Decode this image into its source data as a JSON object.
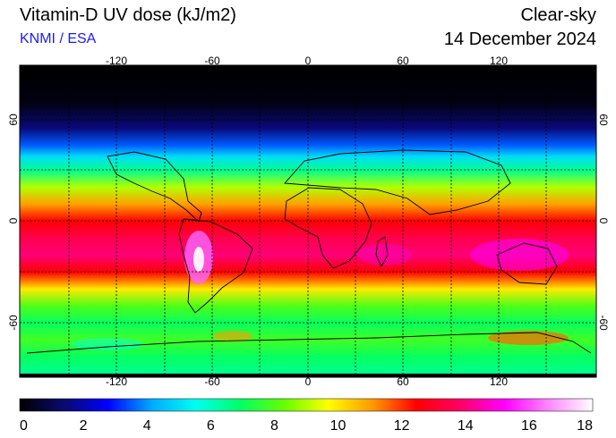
{
  "header": {
    "title": "Vitamin-D UV dose (kJ/m2)",
    "source": "KNMI / ESA",
    "condition": "Clear-sky",
    "date": "14 December 2024"
  },
  "map": {
    "projection": "equirectangular",
    "lon_range": [
      -180,
      180
    ],
    "lat_range": [
      -90,
      90
    ],
    "lon_ticks": [
      -120,
      -60,
      0,
      60,
      120
    ],
    "lon_tick_labels": [
      "-120",
      "-60",
      "0",
      "60",
      "120"
    ],
    "lat_ticks": [
      60,
      0,
      -60
    ],
    "lat_tick_labels": [
      "60",
      "0",
      "-60"
    ],
    "lat_band_dose": [
      {
        "lat": 90,
        "dose": 0.0
      },
      {
        "lat": 70,
        "dose": 0.2
      },
      {
        "lat": 55,
        "dose": 1.5
      },
      {
        "lat": 45,
        "dose": 3.5
      },
      {
        "lat": 38,
        "dose": 5.0
      },
      {
        "lat": 30,
        "dose": 6.5
      },
      {
        "lat": 20,
        "dose": 9.0
      },
      {
        "lat": 10,
        "dose": 11.0
      },
      {
        "lat": 0,
        "dose": 12.5
      },
      {
        "lat": -10,
        "dose": 13.5
      },
      {
        "lat": -20,
        "dose": 14.0
      },
      {
        "lat": -30,
        "dose": 12.5
      },
      {
        "lat": -40,
        "dose": 10.0
      },
      {
        "lat": -50,
        "dose": 8.0
      },
      {
        "lat": -60,
        "dose": 7.0
      },
      {
        "lat": -70,
        "dose": 7.8
      },
      {
        "lat": -80,
        "dose": 7.0
      },
      {
        "lat": -90,
        "dose": 6.5
      }
    ]
  },
  "colorbar": {
    "min": 0,
    "max": 18,
    "tick_values": [
      0,
      2,
      4,
      6,
      8,
      10,
      12,
      14,
      16,
      18
    ],
    "tick_labels": [
      "0",
      "2",
      "4",
      "6",
      "8",
      "10",
      "12",
      "14",
      "16",
      "18"
    ],
    "colors": [
      "#000000",
      "#0a0a6e",
      "#0000ff",
      "#00aaff",
      "#00ffee",
      "#00ff66",
      "#66ff00",
      "#ffff00",
      "#ff9900",
      "#ff0000",
      "#ff0066",
      "#ff00ff",
      "#ff88ff",
      "#ffffff"
    ]
  }
}
